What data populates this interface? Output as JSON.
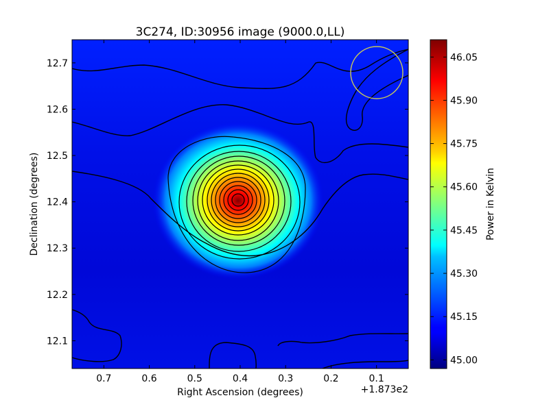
{
  "chart_data": {
    "type": "heatmap",
    "title": "3C274, ID:30956 image (9000.0,LL)",
    "xlabel": "Right Ascension (degrees)",
    "ylabel": "Declination (degrees)",
    "x_offset_label": "+1.873e2",
    "xlim": [
      0.77,
      0.03
    ],
    "ylim": [
      12.04,
      12.75
    ],
    "x_ticks": [
      0.7,
      0.6,
      0.5,
      0.4,
      0.3,
      0.2,
      0.1
    ],
    "x_tick_labels": [
      "0.7",
      "0.6",
      "0.5",
      "0.4",
      "0.3",
      "0.2",
      "0.1"
    ],
    "y_ticks": [
      12.1,
      12.2,
      12.3,
      12.4,
      12.5,
      12.6,
      12.7
    ],
    "y_tick_labels": [
      "12.1",
      "12.2",
      "12.3",
      "12.4",
      "12.5",
      "12.6",
      "12.7"
    ],
    "colorbar": {
      "label": "Power in Kelvin",
      "range": [
        44.97,
        46.11
      ],
      "ticks": [
        45.0,
        45.15,
        45.3,
        45.45,
        45.6,
        45.75,
        45.9,
        46.05
      ],
      "tick_labels": [
        "45.00",
        "45.15",
        "45.30",
        "45.45",
        "45.60",
        "45.75",
        "45.90",
        "46.05"
      ],
      "colormap": "jet"
    },
    "peak": {
      "ra": 0.4,
      "dec": 12.4,
      "value": 46.11
    },
    "beam_circle": {
      "ra": 0.1,
      "dec": 12.68,
      "color": "#c8c85a"
    },
    "contour_color": "#000000",
    "grid": false
  }
}
